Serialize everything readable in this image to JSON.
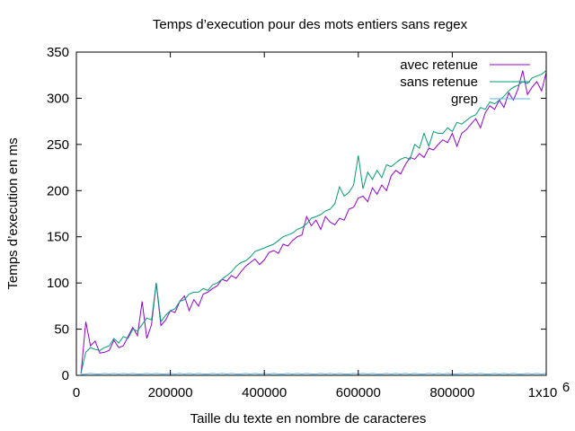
{
  "chart_data": {
    "type": "line",
    "title": "Temps d’execution pour des mots entiers sans regex",
    "xlabel": "Taille du texte en nombre de caracteres",
    "ylabel": "Temps d’execution en ms",
    "xlim": [
      0,
      1000000
    ],
    "ylim": [
      0,
      350
    ],
    "x_ticks": [
      0,
      200000,
      400000,
      600000,
      800000,
      1000000
    ],
    "x_tick_labels": [
      "0",
      "200000",
      "400000",
      "600000",
      "800000",
      "1x10"
    ],
    "x_exponent_label": "6",
    "y_ticks": [
      0,
      50,
      100,
      150,
      200,
      250,
      300,
      350
    ],
    "y_tick_labels": [
      "0",
      "50",
      "100",
      "150",
      "200",
      "250",
      "300",
      "350"
    ],
    "grid": false,
    "legend_position": "top-right",
    "x": [
      10000,
      20000,
      30000,
      40000,
      50000,
      60000,
      70000,
      80000,
      90000,
      100000,
      110000,
      120000,
      130000,
      140000,
      150000,
      160000,
      170000,
      180000,
      190000,
      200000,
      210000,
      220000,
      230000,
      240000,
      250000,
      260000,
      270000,
      280000,
      290000,
      300000,
      310000,
      320000,
      330000,
      340000,
      350000,
      360000,
      370000,
      380000,
      390000,
      400000,
      410000,
      420000,
      430000,
      440000,
      450000,
      460000,
      470000,
      480000,
      490000,
      500000,
      510000,
      520000,
      530000,
      540000,
      550000,
      560000,
      570000,
      580000,
      590000,
      600000,
      610000,
      620000,
      630000,
      640000,
      650000,
      660000,
      670000,
      680000,
      690000,
      700000,
      710000,
      720000,
      730000,
      740000,
      750000,
      760000,
      770000,
      780000,
      790000,
      800000,
      810000,
      820000,
      830000,
      840000,
      850000,
      860000,
      870000,
      880000,
      890000,
      900000,
      910000,
      920000,
      930000,
      940000,
      950000,
      960000,
      970000,
      980000,
      990000,
      1000000
    ],
    "series": [
      {
        "name": "avec retenue",
        "color": "#9400d3",
        "values": [
          2,
          58,
          32,
          37,
          24,
          25,
          27,
          38,
          30,
          32,
          42,
          52,
          43,
          80,
          40,
          55,
          100,
          54,
          60,
          70,
          68,
          80,
          86,
          70,
          82,
          75,
          88,
          90,
          94,
          97,
          104,
          102,
          108,
          105,
          112,
          118,
          122,
          126,
          120,
          125,
          133,
          135,
          132,
          142,
          140,
          146,
          150,
          152,
          172,
          162,
          168,
          158,
          172,
          166,
          163,
          170,
          168,
          180,
          182,
          192,
          194,
          188,
          203,
          196,
          206,
          200,
          216,
          222,
          218,
          228,
          236,
          234,
          240,
          236,
          246,
          244,
          250,
          255,
          252,
          262,
          248,
          262,
          266,
          272,
          278,
          268,
          284,
          292,
          288,
          298,
          290,
          306,
          298,
          310,
          330,
          304,
          312,
          318,
          308,
          328
        ]
      },
      {
        "name": "sans retenue",
        "color": "#009e73",
        "values": [
          3,
          25,
          30,
          28,
          27,
          30,
          32,
          40,
          35,
          42,
          40,
          50,
          48,
          55,
          62,
          60,
          100,
          58,
          65,
          70,
          72,
          80,
          82,
          88,
          90,
          90,
          94,
          92,
          98,
          100,
          104,
          108,
          112,
          118,
          122,
          124,
          128,
          134,
          136,
          138,
          140,
          142,
          146,
          150,
          152,
          154,
          158,
          160,
          164,
          170,
          172,
          174,
          178,
          180,
          186,
          204,
          194,
          198,
          206,
          238,
          202,
          220,
          212,
          222,
          214,
          228,
          226,
          230,
          234,
          236,
          234,
          250,
          246,
          262,
          248,
          264,
          262,
          262,
          268,
          264,
          274,
          272,
          276,
          280,
          282,
          290,
          288,
          296,
          294,
          298,
          302,
          308,
          312,
          314,
          318,
          316,
          322,
          324,
          326,
          330
        ]
      },
      {
        "name": "grep",
        "color": "#56b4e9",
        "values": [
          1,
          1.5,
          2,
          1.5,
          1.5,
          2,
          1.5,
          2,
          1.5,
          2,
          1.5,
          2,
          1.5,
          1.5,
          2,
          1.5,
          2,
          1.5,
          1.5,
          2,
          1.5,
          2,
          1.5,
          2,
          1.5,
          2,
          1.5,
          1.5,
          2,
          1.5,
          2,
          1.5,
          2,
          1.5,
          1.5,
          2,
          1.5,
          2,
          1.5,
          2,
          1.5,
          2,
          1.5,
          1.5,
          2,
          1.5,
          2,
          1.5,
          2,
          1.5,
          1.5,
          2,
          1.5,
          2,
          1.5,
          2,
          1.5,
          1.5,
          2,
          1.5,
          2,
          1.5,
          2,
          1.5,
          1.5,
          2,
          1.5,
          2,
          1.5,
          2,
          1.5,
          2,
          1.5,
          1.5,
          2,
          1.5,
          2,
          1.5,
          2,
          1.5,
          1.5,
          2,
          1.5,
          2,
          1.5,
          2,
          1.5,
          1.5,
          2,
          1.5,
          2,
          1.5,
          2,
          1.5,
          1.5,
          2,
          1.5,
          2,
          1.5,
          2
        ]
      }
    ]
  }
}
